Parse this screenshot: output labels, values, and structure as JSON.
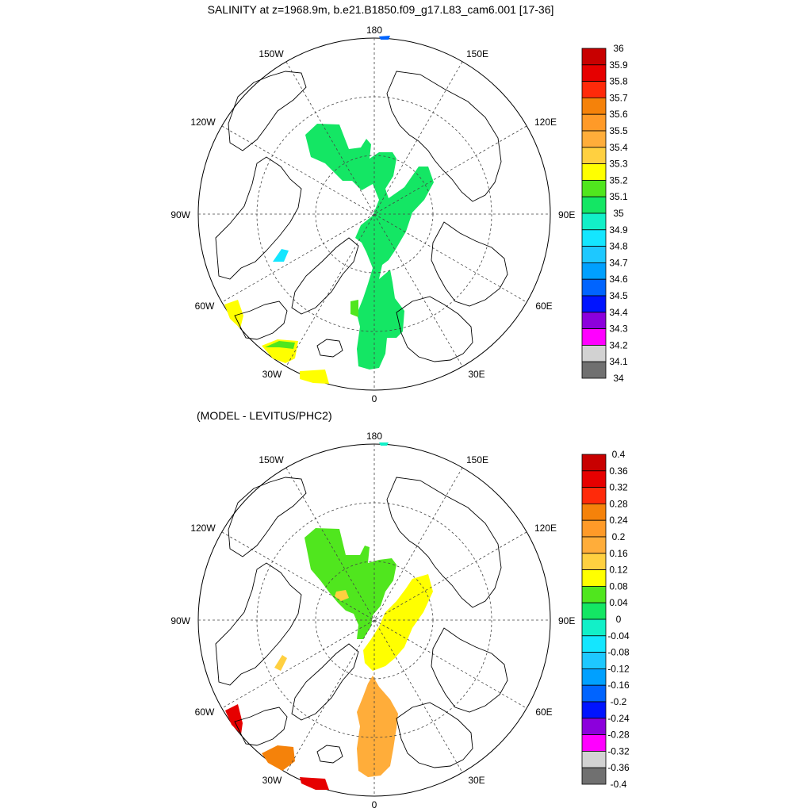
{
  "top_panel": {
    "title": "SALINITY at z=1968.9m, b.e21.B1850.f09_g17.L83_cam6.001 [17-36]",
    "lon_labels": {
      "n": "180",
      "s": "0",
      "w": "90W",
      "e": "90E",
      "nw1": "150W",
      "ne1": "150E",
      "nw2": "120W",
      "ne2": "120E",
      "sw1": "60W",
      "se1": "60E",
      "sw2": "30W",
      "se2": "30E"
    },
    "colorbar": {
      "labels": [
        "36",
        "35.9",
        "35.8",
        "35.7",
        "35.6",
        "35.5",
        "35.4",
        "35.3",
        "35.2",
        "35.1",
        "35",
        "34.9",
        "34.8",
        "34.7",
        "34.6",
        "34.5",
        "34.4",
        "34.3",
        "34.2",
        "34.1",
        "34"
      ],
      "colors": [
        "#c80000",
        "#e60000",
        "#ff2a0a",
        "#f5820a",
        "#ff9a28",
        "#ffad3a",
        "#ffd040",
        "#ffff00",
        "#50e61e",
        "#14e664",
        "#12f0c8",
        "#14e6ff",
        "#1ec8ff",
        "#00a0ff",
        "#0064ff",
        "#0014ff",
        "#8c00dc",
        "#ff00ff",
        "#d2d2d2",
        "#707070"
      ]
    }
  },
  "bottom_panel": {
    "title": "(MODEL - LEVITUS/PHC2)",
    "lon_labels": {
      "n": "180",
      "s": "0",
      "w": "90W",
      "e": "90E",
      "nw1": "150W",
      "ne1": "150E",
      "nw2": "120W",
      "ne2": "120E",
      "sw1": "60W",
      "se1": "60E",
      "sw2": "30W",
      "se2": "30E"
    },
    "colorbar": {
      "labels": [
        "0.4",
        "0.36",
        "0.32",
        "0.28",
        "0.24",
        "0.2",
        "0.16",
        "0.12",
        "0.08",
        "0.04",
        "0",
        "-0.04",
        "-0.08",
        "-0.12",
        "-0.16",
        "-0.2",
        "-0.24",
        "-0.28",
        "-0.32",
        "-0.36",
        "-0.4"
      ],
      "colors": [
        "#c80000",
        "#e60000",
        "#ff2a0a",
        "#f5820a",
        "#ff9a28",
        "#ffad3a",
        "#ffd040",
        "#ffff00",
        "#50e61e",
        "#14e664",
        "#12f0c8",
        "#14e6ff",
        "#1ec8ff",
        "#00a0ff",
        "#0064ff",
        "#0014ff",
        "#8c00dc",
        "#ff00ff",
        "#d2d2d2",
        "#707070"
      ]
    }
  },
  "field_colors": {
    "green": "#14e664",
    "lightgreen": "#50e61e",
    "yellow": "#ffff00",
    "lightyellow": "#ffd040",
    "orange": "#f5820a",
    "lightorange": "#ffad3a",
    "red": "#e60000",
    "blue": "#0064ff",
    "cyan": "#14e6ff",
    "teal": "#12f0c8"
  }
}
